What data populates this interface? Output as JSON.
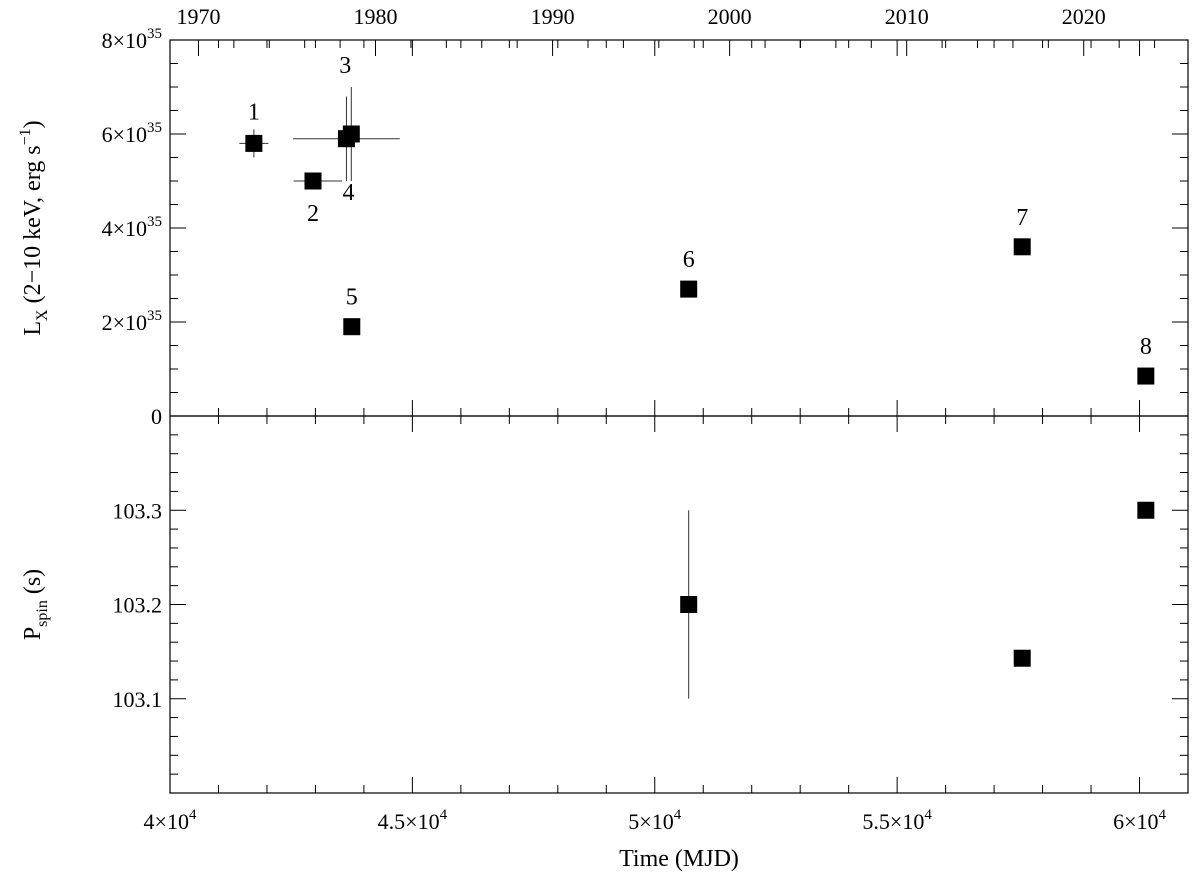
{
  "chart_data": {
    "type": "scatter",
    "top_axis": {
      "label": "",
      "ticks": [
        "1970",
        "1980",
        "1990",
        "2000",
        "2010",
        "2020"
      ],
      "tick_mjd": [
        40587,
        44239,
        47892,
        51544,
        55197,
        58849
      ]
    },
    "x_axis": {
      "label": "Time (MJD)",
      "range": [
        40000,
        61000
      ],
      "ticks": [
        {
          "value": 40000,
          "mantissa": "4×10",
          "exp": "4"
        },
        {
          "value": 45000,
          "mantissa": "4.5×10",
          "exp": "4"
        },
        {
          "value": 50000,
          "mantissa": "5×10",
          "exp": "4"
        },
        {
          "value": 55000,
          "mantissa": "5.5×10",
          "exp": "4"
        },
        {
          "value": 60000,
          "mantissa": "6×10",
          "exp": "4"
        }
      ]
    },
    "panels": [
      {
        "id": "luminosity",
        "y_label_main": "L",
        "y_label_sub": "X",
        "y_label_mid": " (2−10 keV, erg s",
        "y_label_sup": "−1",
        "y_label_end": ")",
        "y_range": [
          0,
          8e+35
        ],
        "y_ticks": [
          {
            "value": 0,
            "mantissa": "0",
            "exp": ""
          },
          {
            "value": 2e+35,
            "mantissa": "2×10",
            "exp": "35"
          },
          {
            "value": 4e+35,
            "mantissa": "4×10",
            "exp": "35"
          },
          {
            "value": 6e+35,
            "mantissa": "6×10",
            "exp": "35"
          },
          {
            "value": 8e+35,
            "mantissa": "8×10",
            "exp": "35"
          }
        ],
        "points": [
          {
            "label": "1",
            "x": 41730,
            "y": 5.8e+35,
            "xerr": 300,
            "yerr": 3e+34,
            "label_pos": "above"
          },
          {
            "label": "2",
            "x": 42950,
            "y": 5e+35,
            "xerr": 0,
            "yerr": 0,
            "label_pos": "below"
          },
          {
            "label": "3",
            "x": 43740,
            "y": 6e+35,
            "xerr": 0,
            "yerr": 1e+35,
            "label_pos": "above"
          },
          {
            "label": "4",
            "x": 43640,
            "y": 5.9e+35,
            "xerr": 1100,
            "yerr": 9e+34,
            "label_pos": "below"
          },
          {
            "label": "5",
            "x": 43750,
            "y": 1.9e+35,
            "xerr": 0,
            "yerr": 0,
            "label_pos": "above"
          },
          {
            "label": "6",
            "x": 50700,
            "y": 2.7e+35,
            "xerr": 0,
            "yerr": 0,
            "label_pos": "above"
          },
          {
            "label": "7",
            "x": 57580,
            "y": 3.6e+35,
            "xerr": 0,
            "yerr": 0,
            "label_pos": "above"
          },
          {
            "label": "8",
            "x": 60130,
            "y": 8.5e+34,
            "xerr": 0,
            "yerr": 0,
            "label_pos": "above"
          }
        ]
      },
      {
        "id": "spin",
        "y_label_main": "P",
        "y_label_sub": "spin",
        "y_label_mid": " (s)",
        "y_label_sup": "",
        "y_label_end": "",
        "y_range": [
          103.0,
          103.4
        ],
        "y_ticks": [
          {
            "value": 103.1,
            "mantissa": "103.1",
            "exp": ""
          },
          {
            "value": 103.2,
            "mantissa": "103.2",
            "exp": ""
          },
          {
            "value": 103.3,
            "mantissa": "103.3",
            "exp": ""
          }
        ],
        "points": [
          {
            "label": "",
            "x": 50700,
            "y": 103.2,
            "xerr": 0,
            "yerr": 0.1,
            "label_pos": "none"
          },
          {
            "label": "",
            "x": 57580,
            "y": 103.143,
            "xerr": 0,
            "yerr": 0,
            "label_pos": "none"
          },
          {
            "label": "",
            "x": 60130,
            "y": 103.3,
            "xerr": 0,
            "yerr": 0,
            "label_pos": "none"
          }
        ]
      }
    ]
  }
}
